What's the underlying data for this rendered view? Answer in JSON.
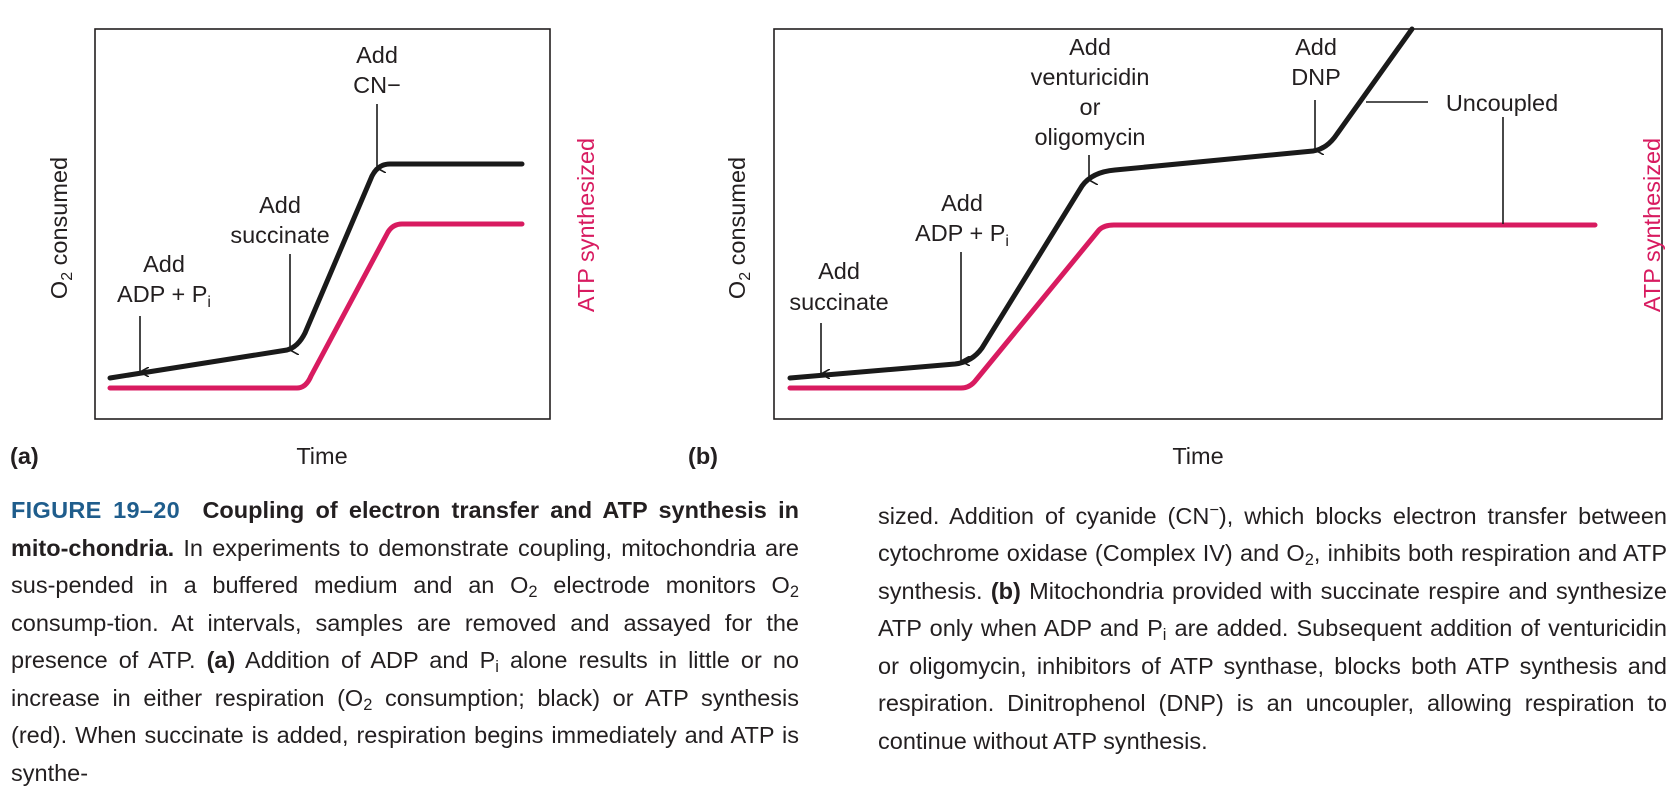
{
  "figure": {
    "panel_a": {
      "panel_label": "(a)",
      "ylabel_left": "O",
      "ylabel_left_sub": "2",
      "ylabel_left_rest": " consumed",
      "ylabel_right": "ATP synthesized",
      "xlabel": "Time",
      "annotations": {
        "add_adp_line1": "Add",
        "add_adp_line2": "ADP + P",
        "add_adp_sub": "i",
        "add_succinate_line1": "Add",
        "add_succinate_line2": "succinate",
        "add_cn_line1": "Add",
        "add_cn_line2": "CN−"
      }
    },
    "panel_b": {
      "panel_label": "(b)",
      "ylabel_left": "O",
      "ylabel_left_sub": "2",
      "ylabel_left_rest": " consumed",
      "ylabel_right": "ATP synthesized",
      "xlabel": "Time",
      "annotations": {
        "add_succinate_line1": "Add",
        "add_succinate_line2": "succinate",
        "add_adp_line1": "Add",
        "add_adp_line2": "ADP + P",
        "add_adp_sub": "i",
        "add_vent_line1": "Add",
        "add_vent_line2": "venturicidin",
        "add_vent_line3": "or",
        "add_vent_line4": "oligomycin",
        "add_dnp_line1": "Add",
        "add_dnp_line2": "DNP",
        "uncoupled": "Uncoupled"
      }
    },
    "colors": {
      "o2_line": "#1a1a1a",
      "atp_line": "#d81b60",
      "caption_accent": "#1f5d8c"
    }
  },
  "caption": {
    "figure_number": "FIGURE 19–20",
    "title": "Coupling of electron transfer and ATP synthesis in mito-chondria.",
    "left": {
      "t1": " In experiments to demonstrate coupling, mitochondria are sus-pended in a buffered medium and an O",
      "s1": "2",
      "t2": " electrode monitors O",
      "s2": "2",
      "t3": " consump-tion. At intervals, samples are removed and assayed for the presence of ATP. ",
      "a_label": "(a)",
      "t4": " Addition of ADP and P",
      "s3": "i",
      "t5": " alone results in little or no increase in either respiration (O",
      "s4": "2",
      "t6": " consumption; black) or ATP synthesis (red). When succinate is added, respiration begins immediately and ATP is synthe-"
    },
    "right": {
      "t1": "sized. Addition of cyanide (CN",
      "sup1": "−",
      "t2": "), which blocks electron transfer between cytochrome oxidase (Complex IV) and O",
      "s1": "2",
      "t3": ", inhibits both respiration and ATP synthesis. ",
      "b_label": "(b)",
      "t4": " Mitochondria provided with succinate respire and synthesize ATP only when ADP and P",
      "s2": "i",
      "t5": " are added. Subsequent addition of venturicidin or oligomycin, inhibitors of ATP synthase, blocks both ATP synthesis and respiration. Dinitrophenol (DNP) is an uncoupler, allowing respiration to continue without ATP synthesis."
    }
  }
}
